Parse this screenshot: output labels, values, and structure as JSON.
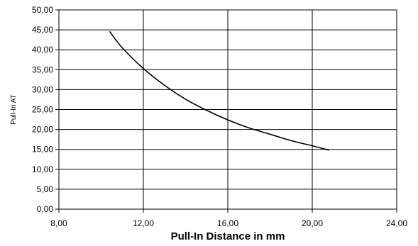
{
  "chart_data": {
    "type": "line",
    "xlabel": "Pull-In Distance in mm",
    "ylabel": "Pull-In AT",
    "xlim": [
      8,
      24
    ],
    "ylim": [
      0,
      50
    ],
    "x_ticks": [
      8,
      12,
      16,
      20,
      24
    ],
    "y_ticks": [
      0,
      5,
      10,
      15,
      20,
      25,
      30,
      35,
      40,
      45,
      50
    ],
    "x_tick_labels": [
      "8,00",
      "12,00",
      "16,00",
      "20,00",
      "24,00"
    ],
    "y_tick_labels": [
      "0,00",
      "5,00",
      "10,00",
      "15,00",
      "20,00",
      "25,00",
      "30,00",
      "35,00",
      "40,00",
      "45,00",
      "50,00"
    ],
    "grid": {
      "vertical": true,
      "horizontal": true
    },
    "legend": "none",
    "line_color": "#000000",
    "series": [
      {
        "x": [
          10.4,
          11.0,
          12.0,
          13.0,
          14.0,
          15.0,
          16.0,
          17.0,
          18.0,
          19.0,
          20.0,
          20.8
        ],
        "values": [
          44.6,
          40.5,
          35.3,
          31.1,
          27.6,
          24.8,
          22.4,
          20.4,
          18.8,
          17.2,
          15.9,
          14.8
        ]
      }
    ]
  }
}
